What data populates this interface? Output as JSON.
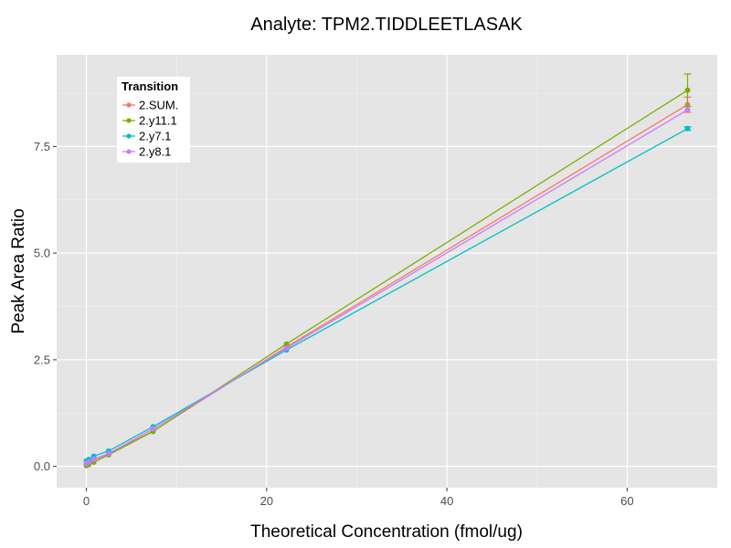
{
  "chart_data": {
    "type": "line",
    "title": "Analyte: TPM2.TIDDLEETLASAK",
    "xlabel": "Theoretical Concentration (fmol/ug)",
    "ylabel": "Peak Area Ratio",
    "xlim": [
      -3.3,
      70.0
    ],
    "ylim": [
      -0.5,
      9.65
    ],
    "x_ticks": [
      0,
      20,
      40,
      60
    ],
    "x_tick_labels": [
      "0",
      "20",
      "40",
      "60"
    ],
    "y_ticks": [
      0.0,
      2.5,
      5.0,
      7.5
    ],
    "y_tick_labels": [
      "0.0",
      "2.5",
      "5.0",
      "7.5"
    ],
    "grid": true,
    "background": "#e5e5e5",
    "legend": {
      "title": "Transition",
      "position": "top-left"
    },
    "series": [
      {
        "name": "2.SUM.",
        "color": "#f8766d",
        "x": [
          0,
          0.25,
          0.82,
          2.47,
          7.4,
          22.2,
          66.7
        ],
        "y": [
          0.05,
          0.08,
          0.15,
          0.29,
          0.83,
          2.8,
          8.48
        ],
        "error": [
          0,
          0,
          0,
          0,
          0,
          0,
          0.18
        ]
      },
      {
        "name": "2.y11.1",
        "color": "#7cae00",
        "x": [
          0,
          0.25,
          0.82,
          2.47,
          7.4,
          22.2,
          66.7
        ],
        "y": [
          0.02,
          0.04,
          0.1,
          0.27,
          0.82,
          2.87,
          8.82
        ],
        "error": [
          0,
          0,
          0,
          0,
          0,
          0,
          0.38
        ]
      },
      {
        "name": "2.y7.1",
        "color": "#00bfc4",
        "x": [
          0,
          0.25,
          0.82,
          2.47,
          7.4,
          22.2,
          66.7
        ],
        "y": [
          0.13,
          0.16,
          0.24,
          0.36,
          0.93,
          2.73,
          7.92
        ],
        "error": [
          0,
          0,
          0,
          0,
          0,
          0,
          0.04
        ]
      },
      {
        "name": "2.y8.1",
        "color": "#c77cff",
        "x": [
          0,
          0.25,
          0.82,
          2.47,
          7.4,
          22.2,
          66.7
        ],
        "y": [
          0.07,
          0.1,
          0.17,
          0.3,
          0.88,
          2.77,
          8.36
        ],
        "error": [
          0,
          0,
          0,
          0,
          0,
          0,
          0
        ]
      }
    ]
  }
}
